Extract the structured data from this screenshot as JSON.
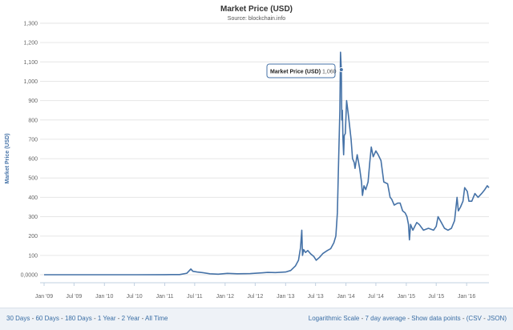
{
  "chart_data": {
    "type": "line",
    "title": "Market Price (USD)",
    "subtitle": "Source: blockchain.info",
    "ylabel": "Market Price (USD)",
    "xlabel": "",
    "ylim": [
      0,
      1300
    ],
    "y_ticks": [
      0,
      100,
      200,
      300,
      400,
      500,
      600,
      700,
      800,
      900,
      1000,
      1100,
      1200,
      1300
    ],
    "y_tick_labels": [
      "0,0000",
      "100",
      "200",
      "300",
      "400",
      "500",
      "600",
      "700",
      "800",
      "900",
      "1,000",
      "1,100",
      "1,200",
      "1,300"
    ],
    "x_range": [
      "2009-01-01",
      "2016-05-15"
    ],
    "x_ticks": [
      "2009-01-01",
      "2009-07-01",
      "2010-01-01",
      "2010-07-01",
      "2011-01-01",
      "2011-07-01",
      "2012-01-01",
      "2012-07-01",
      "2013-01-01",
      "2013-07-01",
      "2014-01-01",
      "2014-07-01",
      "2015-01-01",
      "2015-07-01",
      "2016-01-01"
    ],
    "x_tick_labels": [
      "Jan '09",
      "Jul '09",
      "Jan '10",
      "Jul '10",
      "Jan '11",
      "Jul '11",
      "Jan '12",
      "Jul '12",
      "Jan '13",
      "Jul '13",
      "Jan '14",
      "Jul '14",
      "Jan '15",
      "Jul '15",
      "Jan '16"
    ],
    "grid": true,
    "color": "#4572a7",
    "tooltip": {
      "label": "Market Price (USD)",
      "value": "1,060",
      "x": "2013-12-04",
      "y": 1060
    },
    "series": [
      {
        "x": [
          "2009-01-01",
          "2010-07-17",
          "2011-01-01",
          "2011-02-10",
          "2011-04-01",
          "2011-05-15",
          "2011-06-08",
          "2011-06-20",
          "2011-07-15",
          "2011-08-15",
          "2011-10-01",
          "2011-11-20",
          "2012-01-15",
          "2012-03-15",
          "2012-06-01",
          "2012-08-15",
          "2012-09-15",
          "2012-11-01",
          "2013-01-01",
          "2013-02-01",
          "2013-03-01",
          "2013-03-20",
          "2013-04-01",
          "2013-04-09",
          "2013-04-13",
          "2013-04-20",
          "2013-05-01",
          "2013-05-15",
          "2013-06-01",
          "2013-06-20",
          "2013-07-05",
          "2013-07-25",
          "2013-08-15",
          "2013-09-10",
          "2013-10-01",
          "2013-10-20",
          "2013-11-01",
          "2013-11-10",
          "2013-11-18",
          "2013-11-25",
          "2013-11-29",
          "2013-12-04",
          "2013-12-07",
          "2013-12-10",
          "2013-12-14",
          "2013-12-18",
          "2013-12-22",
          "2013-12-28",
          "2014-01-05",
          "2014-01-15",
          "2014-02-01",
          "2014-02-10",
          "2014-02-20",
          "2014-02-25",
          "2014-03-10",
          "2014-03-25",
          "2014-04-05",
          "2014-04-11",
          "2014-04-20",
          "2014-05-01",
          "2014-05-15",
          "2014-05-25",
          "2014-06-03",
          "2014-06-15",
          "2014-07-01",
          "2014-07-15",
          "2014-08-01",
          "2014-08-18",
          "2014-09-10",
          "2014-09-25",
          "2014-10-05",
          "2014-10-20",
          "2014-11-10",
          "2014-11-25",
          "2014-12-10",
          "2014-12-25",
          "2015-01-05",
          "2015-01-14",
          "2015-01-20",
          "2015-01-27",
          "2015-02-10",
          "2015-03-05",
          "2015-03-20",
          "2015-04-15",
          "2015-05-15",
          "2015-06-15",
          "2015-07-01",
          "2015-07-12",
          "2015-08-01",
          "2015-08-20",
          "2015-09-10",
          "2015-10-01",
          "2015-10-20",
          "2015-11-04",
          "2015-11-12",
          "2015-11-25",
          "2015-12-10",
          "2015-12-20",
          "2016-01-05",
          "2016-01-15",
          "2016-02-01",
          "2016-02-20",
          "2016-03-10",
          "2016-04-01",
          "2016-04-20",
          "2016-05-05",
          "2016-05-15"
        ],
        "y": [
          0,
          0.07,
          0.3,
          1,
          0.8,
          8,
          30,
          18,
          14,
          11,
          5,
          3,
          7,
          5,
          6,
          10,
          12,
          11,
          14,
          22,
          45,
          75,
          140,
          230,
          100,
          130,
          115,
          125,
          108,
          95,
          75,
          90,
          110,
          125,
          135,
          165,
          200,
          320,
          600,
          850,
          1150,
          1060,
          800,
          850,
          700,
          620,
          720,
          730,
          900,
          830,
          700,
          600,
          580,
          550,
          620,
          550,
          480,
          410,
          460,
          440,
          480,
          580,
          660,
          610,
          640,
          620,
          590,
          480,
          470,
          400,
          390,
          360,
          370,
          370,
          330,
          320,
          300,
          260,
          180,
          260,
          230,
          270,
          260,
          230,
          240,
          230,
          250,
          300,
          270,
          240,
          230,
          240,
          280,
          400,
          330,
          350,
          380,
          450,
          430,
          380,
          380,
          420,
          400,
          420,
          440,
          460,
          450
        ]
      }
    ]
  },
  "footer": {
    "ranges": [
      "30 Days",
      "60 Days",
      "180 Days",
      "1 Year",
      "2 Year",
      "All Time"
    ],
    "options": [
      "Logarithmic Scale",
      "7 day average",
      "Show data points",
      "(CSV",
      "JSON)"
    ]
  }
}
